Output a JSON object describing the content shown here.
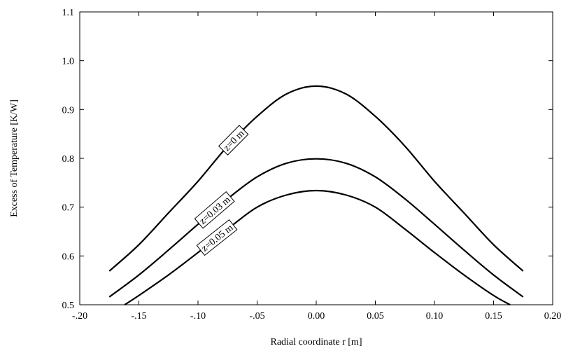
{
  "chart_data": {
    "type": "line",
    "title": "",
    "xlabel": "Radial coordinate r [m]",
    "ylabel": "Excess of Temperature [K/W]",
    "xlim": [
      -0.2,
      0.2
    ],
    "ylim": [
      0.5,
      1.1
    ],
    "grid": false,
    "legend": "none",
    "xticks": [
      {
        "value": -0.2,
        "label": "-.20"
      },
      {
        "value": -0.15,
        "label": "-.15"
      },
      {
        "value": -0.1,
        "label": "-.10"
      },
      {
        "value": -0.05,
        "label": "-.05"
      },
      {
        "value": 0.0,
        "label": "0.00"
      },
      {
        "value": 0.05,
        "label": "0.05"
      },
      {
        "value": 0.1,
        "label": "0.10"
      },
      {
        "value": 0.15,
        "label": "0.15"
      },
      {
        "value": 0.2,
        "label": "0.20"
      }
    ],
    "yticks": [
      {
        "value": 0.5,
        "label": "0.5"
      },
      {
        "value": 0.6,
        "label": "0.6"
      },
      {
        "value": 0.7,
        "label": "0.7"
      },
      {
        "value": 0.8,
        "label": "0.8"
      },
      {
        "value": 0.9,
        "label": "0.9"
      },
      {
        "value": 1.0,
        "label": "1.0"
      },
      {
        "value": 1.1,
        "label": "1.1"
      }
    ],
    "series": [
      {
        "name": "z=0 m",
        "label_at": -0.07,
        "x": [
          -0.175,
          -0.15,
          -0.125,
          -0.1,
          -0.075,
          -0.05,
          -0.025,
          0.0,
          0.025,
          0.05,
          0.075,
          0.1,
          0.125,
          0.15,
          0.175
        ],
        "y": [
          0.569,
          0.623,
          0.688,
          0.753,
          0.825,
          0.886,
          0.932,
          0.948,
          0.932,
          0.886,
          0.825,
          0.753,
          0.688,
          0.623,
          0.569
        ]
      },
      {
        "name": "z=0.03 m",
        "label_at": -0.086,
        "x": [
          -0.175,
          -0.15,
          -0.125,
          -0.1,
          -0.075,
          -0.05,
          -0.025,
          0.0,
          0.025,
          0.05,
          0.075,
          0.1,
          0.125,
          0.15,
          0.175
        ],
        "y": [
          0.516,
          0.561,
          0.612,
          0.665,
          0.717,
          0.762,
          0.79,
          0.799,
          0.79,
          0.762,
          0.717,
          0.665,
          0.612,
          0.561,
          0.516
        ]
      },
      {
        "name": "z=0.05 m",
        "label_at": -0.084,
        "x": [
          -0.162,
          -0.15,
          -0.125,
          -0.1,
          -0.075,
          -0.05,
          -0.025,
          0.0,
          0.025,
          0.05,
          0.075,
          0.1,
          0.125,
          0.15,
          0.164
        ],
        "y": [
          0.5,
          0.519,
          0.561,
          0.607,
          0.655,
          0.7,
          0.725,
          0.734,
          0.725,
          0.7,
          0.655,
          0.607,
          0.561,
          0.519,
          0.5
        ]
      }
    ]
  }
}
